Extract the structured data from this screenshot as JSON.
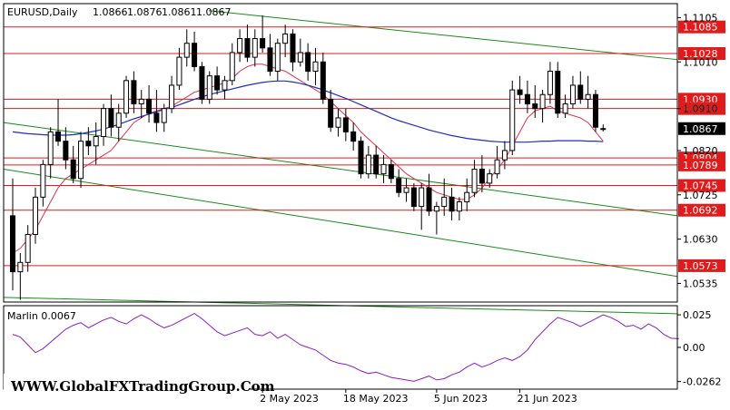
{
  "header": {
    "symbol": "EURUSD,Daily",
    "ohlc": [
      "1.0866",
      "1.0876",
      "1.0861",
      "1.0867"
    ]
  },
  "watermark": "WWW.GlobalFXTradingGroup.Com",
  "chart_data": [
    {
      "type": "candlestick",
      "ylim": [
        1.0495,
        1.1135
      ],
      "price_ticks": [
        1.1105,
        1.101,
        1.091,
        1.082,
        1.0725,
        1.063,
        1.0535
      ],
      "x_ticks": [
        "2 May 2023",
        "18 May 2023",
        "5 Jun 2023",
        "21 Jun 2023"
      ],
      "current_price": "1.0867",
      "levels": [
        {
          "label": "1.1085",
          "value": 1.1085
        },
        {
          "label": "1.1028",
          "value": 1.1028
        },
        {
          "label": "1.0930",
          "value": 1.093
        },
        {
          "label": "1.0910",
          "value": 1.091
        },
        {
          "label": "1.0804",
          "value": 1.0804
        },
        {
          "label": "1.0789",
          "value": 1.0789
        },
        {
          "label": "1.0745",
          "value": 1.0745
        },
        {
          "label": "1.0692",
          "value": 1.0692
        },
        {
          "label": "1.0573",
          "value": 1.0573
        }
      ],
      "candles": [
        [
          1.068,
          1.076,
          1.052,
          1.056
        ],
        [
          1.056,
          1.06,
          1.05,
          1.058
        ],
        [
          1.058,
          1.066,
          1.056,
          1.064
        ],
        [
          1.064,
          1.074,
          1.062,
          1.072
        ],
        [
          1.072,
          1.08,
          1.07,
          1.079
        ],
        [
          1.079,
          1.087,
          1.076,
          1.086
        ],
        [
          1.086,
          1.093,
          1.083,
          1.084
        ],
        [
          1.084,
          1.087,
          1.078,
          1.08
        ],
        [
          1.08,
          1.083,
          1.075,
          1.076
        ],
        [
          1.076,
          1.086,
          1.074,
          1.084
        ],
        [
          1.084,
          1.087,
          1.081,
          1.083
        ],
        [
          1.083,
          1.088,
          1.079,
          1.085
        ],
        [
          1.085,
          1.092,
          1.083,
          1.091
        ],
        [
          1.091,
          1.094,
          1.085,
          1.087
        ],
        [
          1.087,
          1.092,
          1.084,
          1.09
        ],
        [
          1.09,
          1.098,
          1.089,
          1.097
        ],
        [
          1.097,
          1.099,
          1.09,
          1.092
        ],
        [
          1.092,
          1.095,
          1.089,
          1.093
        ],
        [
          1.093,
          1.096,
          1.088,
          1.09
        ],
        [
          1.09,
          1.095,
          1.086,
          1.088
        ],
        [
          1.088,
          1.092,
          1.086,
          1.091
        ],
        [
          1.091,
          1.098,
          1.09,
          1.096
        ],
        [
          1.096,
          1.104,
          1.095,
          1.102
        ],
        [
          1.102,
          1.108,
          1.1,
          1.105
        ],
        [
          1.105,
          1.1075,
          1.099,
          1.1
        ],
        [
          1.1,
          1.101,
          1.092,
          1.093
        ],
        [
          1.093,
          1.099,
          1.092,
          1.098
        ],
        [
          1.098,
          1.1,
          1.094,
          1.095
        ],
        [
          1.095,
          1.098,
          1.093,
          1.097
        ],
        [
          1.097,
          1.105,
          1.096,
          1.103
        ],
        [
          1.103,
          1.108,
          1.101,
          1.106
        ],
        [
          1.106,
          1.109,
          1.101,
          1.102
        ],
        [
          1.102,
          1.108,
          1.1,
          1.106
        ],
        [
          1.106,
          1.111,
          1.103,
          1.104
        ],
        [
          1.104,
          1.107,
          1.098,
          1.099
        ],
        [
          1.099,
          1.106,
          1.097,
          1.105
        ],
        [
          1.105,
          1.109,
          1.102,
          1.107
        ],
        [
          1.107,
          1.108,
          1.099,
          1.101
        ],
        [
          1.101,
          1.106,
          1.1,
          1.103
        ],
        [
          1.103,
          1.105,
          1.097,
          1.099
        ],
        [
          1.099,
          1.104,
          1.096,
          1.101
        ],
        [
          1.101,
          1.103,
          1.092,
          1.093
        ],
        [
          1.093,
          1.095,
          1.086,
          1.087
        ],
        [
          1.087,
          1.091,
          1.085,
          1.089
        ],
        [
          1.089,
          1.091,
          1.084,
          1.086
        ],
        [
          1.086,
          1.088,
          1.082,
          1.084
        ],
        [
          1.084,
          1.085,
          1.076,
          1.077
        ],
        [
          1.077,
          1.083,
          1.076,
          1.081
        ],
        [
          1.081,
          1.083,
          1.076,
          1.077
        ],
        [
          1.077,
          1.081,
          1.075,
          1.079
        ],
        [
          1.079,
          1.08,
          1.075,
          1.076
        ],
        [
          1.076,
          1.078,
          1.072,
          1.073
        ],
        [
          1.073,
          1.076,
          1.071,
          1.074
        ],
        [
          1.074,
          1.075,
          1.069,
          1.07
        ],
        [
          1.07,
          1.075,
          1.065,
          1.074
        ],
        [
          1.074,
          1.077,
          1.068,
          1.069
        ],
        [
          1.069,
          1.071,
          1.064,
          1.07
        ],
        [
          1.07,
          1.076,
          1.068,
          1.072
        ],
        [
          1.072,
          1.074,
          1.067,
          1.069
        ],
        [
          1.069,
          1.072,
          1.067,
          1.071
        ],
        [
          1.071,
          1.076,
          1.069,
          1.073
        ],
        [
          1.073,
          1.08,
          1.072,
          1.078
        ],
        [
          1.078,
          1.081,
          1.073,
          1.075
        ],
        [
          1.075,
          1.078,
          1.074,
          1.077
        ],
        [
          1.077,
          1.083,
          1.076,
          1.08
        ],
        [
          1.08,
          1.084,
          1.078,
          1.082
        ],
        [
          1.082,
          1.097,
          1.081,
          1.095
        ],
        [
          1.095,
          1.098,
          1.092,
          1.094
        ],
        [
          1.094,
          1.097,
          1.09,
          1.092
        ],
        [
          1.092,
          1.096,
          1.089,
          1.091
        ],
        [
          1.091,
          1.095,
          1.088,
          1.094
        ],
        [
          1.094,
          1.101,
          1.092,
          1.099
        ],
        [
          1.099,
          1.101,
          1.089,
          1.09
        ],
        [
          1.09,
          1.094,
          1.089,
          1.092
        ],
        [
          1.092,
          1.098,
          1.091,
          1.096
        ],
        [
          1.096,
          1.099,
          1.092,
          1.093
        ],
        [
          1.093,
          1.098,
          1.091,
          1.094
        ],
        [
          1.094,
          1.095,
          1.086,
          1.087
        ],
        [
          1.0866,
          1.0876,
          1.0861,
          1.0867
        ]
      ],
      "ma_red": [
        1.06,
        1.061,
        1.063,
        1.065,
        1.068,
        1.071,
        1.074,
        1.076,
        1.077,
        1.078,
        1.079,
        1.08,
        1.081,
        1.082,
        1.084,
        1.086,
        1.088,
        1.089,
        1.09,
        1.0905,
        1.091,
        1.0915,
        1.0925,
        1.0935,
        1.0945,
        1.095,
        1.0955,
        1.096,
        1.0965,
        1.0975,
        1.099,
        1.1,
        1.1005,
        1.1005,
        1.1,
        1.0995,
        1.099,
        1.098,
        1.097,
        1.096,
        1.095,
        1.094,
        1.0925,
        1.091,
        1.0895,
        1.088,
        1.086,
        1.0845,
        1.083,
        1.0815,
        1.08,
        1.0785,
        1.077,
        1.076,
        1.075,
        1.074,
        1.073,
        1.0725,
        1.072,
        1.0715,
        1.0715,
        1.0725,
        1.074,
        1.076,
        1.078,
        1.08,
        1.083,
        1.086,
        1.089,
        1.0905,
        1.091,
        1.0915,
        1.0905,
        1.09,
        1.0895,
        1.089,
        1.088,
        1.086,
        1.084
      ],
      "ma_blue": [
        1.086,
        1.0858,
        1.0856,
        1.0855,
        1.0854,
        1.0853,
        1.0853,
        1.0853,
        1.0854,
        1.0856,
        1.0859,
        1.0862,
        1.0866,
        1.0871,
        1.0876,
        1.0882,
        1.0888,
        1.0893,
        1.0898,
        1.0903,
        1.0908,
        1.0912,
        1.0918,
        1.0924,
        1.093,
        1.0935,
        1.094,
        1.0944,
        1.0948,
        1.0952,
        1.0956,
        1.096,
        1.0963,
        1.0966,
        1.0968,
        1.0969,
        1.0969,
        1.0967,
        1.0964,
        1.096,
        1.0955,
        1.095,
        1.0944,
        1.0938,
        1.0932,
        1.0925,
        1.0918,
        1.0911,
        1.0904,
        1.0897,
        1.089,
        1.0884,
        1.0879,
        1.0874,
        1.0869,
        1.0864,
        1.086,
        1.0856,
        1.0852,
        1.0849,
        1.0846,
        1.0844,
        1.0842,
        1.084,
        1.0839,
        1.0838,
        1.0838,
        1.0838,
        1.0838,
        1.0839,
        1.084,
        1.084,
        1.0841,
        1.0841,
        1.0841,
        1.0841,
        1.084,
        1.084,
        1.0839
      ]
    },
    {
      "type": "line",
      "title": "Marlin 0.0067",
      "ylim": [
        -0.032,
        0.032
      ],
      "y_ticks": [
        "0.025",
        "0.00",
        "-0.0262"
      ],
      "y_tick_values": [
        0.025,
        0.0,
        -0.0262
      ],
      "values": [
        0.01,
        0.008,
        0.002,
        -0.004,
        -0.001,
        0.004,
        0.009,
        0.014,
        0.017,
        0.019,
        0.015,
        0.018,
        0.021,
        0.023,
        0.02,
        0.018,
        0.022,
        0.025,
        0.022,
        0.018,
        0.015,
        0.017,
        0.02,
        0.023,
        0.026,
        0.022,
        0.017,
        0.012,
        0.009,
        0.011,
        0.013,
        0.015,
        0.01,
        0.009,
        0.012,
        0.007,
        0.01,
        0.006,
        0.002,
        0.0,
        -0.002,
        -0.006,
        -0.01,
        -0.012,
        -0.013,
        -0.015,
        -0.018,
        -0.02,
        -0.019,
        -0.021,
        -0.023,
        -0.024,
        -0.025,
        -0.026,
        -0.024,
        -0.022,
        -0.025,
        -0.024,
        -0.021,
        -0.019,
        -0.015,
        -0.012,
        -0.015,
        -0.013,
        -0.01,
        -0.008,
        -0.01,
        -0.007,
        -0.002,
        0.006,
        0.012,
        0.018,
        0.023,
        0.021,
        0.019,
        0.016,
        0.019,
        0.022,
        0.025,
        0.023,
        0.02,
        0.016,
        0.017,
        0.014,
        0.018,
        0.015,
        0.01,
        0.007,
        0.0067
      ]
    }
  ]
}
